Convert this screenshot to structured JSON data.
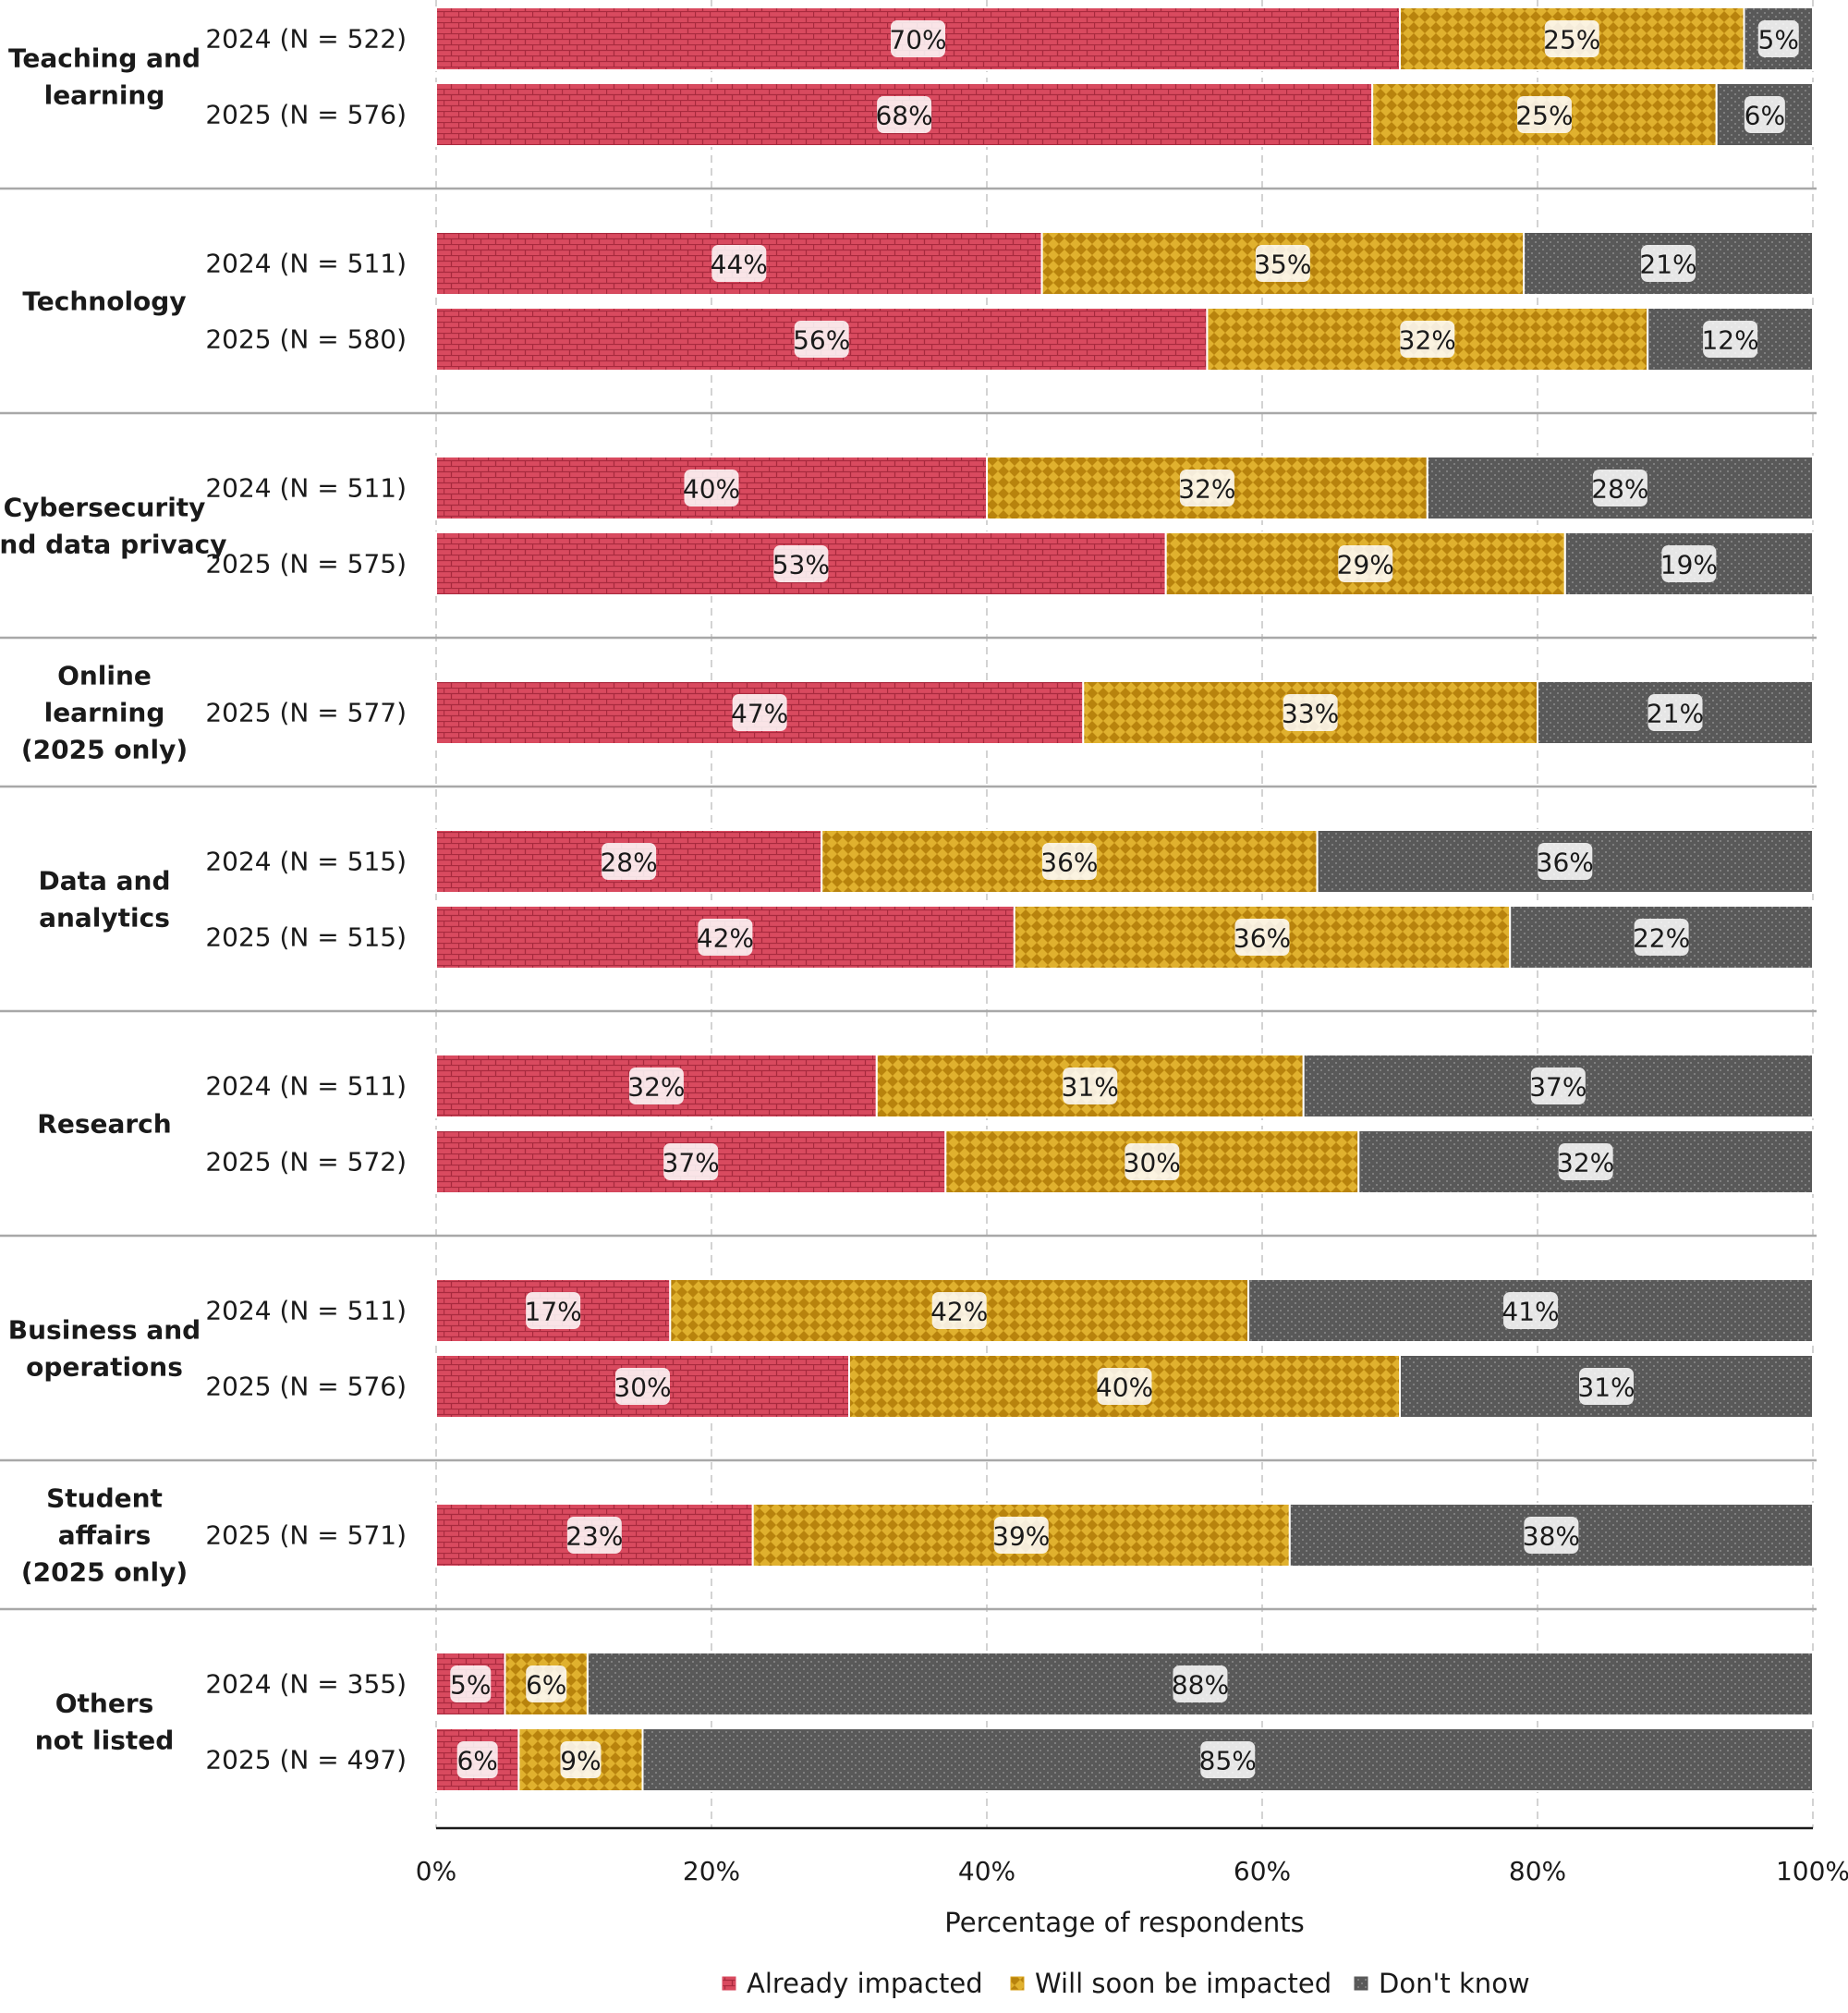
{
  "chart_data": {
    "type": "bar",
    "orientation": "horizontal",
    "stacked": true,
    "xlabel": "Percentage of respondents",
    "xlim": [
      0,
      100
    ],
    "x_ticks": [
      "0%",
      "20%",
      "40%",
      "60%",
      "80%",
      "100%"
    ],
    "grid": "vertical-dashed",
    "legend_position": "bottom",
    "series": [
      {
        "name": "Already impacted",
        "color": "#d94a5f",
        "pattern": "bricks"
      },
      {
        "name": "Will soon be impacted",
        "color": "#d9a21b",
        "pattern": "checker"
      },
      {
        "name": "Don't know",
        "color": "#595959",
        "pattern": "dots"
      }
    ],
    "groups": [
      {
        "label": [
          "Teaching and",
          "learning"
        ],
        "rows": [
          {
            "label": "2024 (N = 522)",
            "values": [
              70,
              25,
              5
            ]
          },
          {
            "label": "2025 (N = 576)",
            "values": [
              68,
              25,
              6
            ]
          }
        ]
      },
      {
        "label": [
          "Technology"
        ],
        "rows": [
          {
            "label": "2024 (N = 511)",
            "values": [
              44,
              35,
              21
            ]
          },
          {
            "label": "2025 (N = 580)",
            "values": [
              56,
              32,
              12
            ]
          }
        ]
      },
      {
        "label": [
          "Cybersecurity",
          "and data privacy"
        ],
        "rows": [
          {
            "label": "2024 (N = 511)",
            "values": [
              40,
              32,
              28
            ]
          },
          {
            "label": "2025 (N = 575)",
            "values": [
              53,
              29,
              19
            ]
          }
        ]
      },
      {
        "label": [
          "Online",
          "learning",
          "(2025 only)"
        ],
        "rows": [
          {
            "label": "2025 (N = 577)",
            "values": [
              47,
              33,
              21
            ]
          }
        ]
      },
      {
        "label": [
          "Data and",
          "analytics"
        ],
        "rows": [
          {
            "label": "2024 (N = 515)",
            "values": [
              28,
              36,
              36
            ]
          },
          {
            "label": "2025 (N = 515)",
            "values": [
              42,
              36,
              22
            ]
          }
        ]
      },
      {
        "label": [
          "Research"
        ],
        "rows": [
          {
            "label": "2024 (N = 511)",
            "values": [
              32,
              31,
              37
            ]
          },
          {
            "label": "2025 (N = 572)",
            "values": [
              37,
              30,
              32
            ]
          }
        ]
      },
      {
        "label": [
          "Business and",
          "operations"
        ],
        "rows": [
          {
            "label": "2024 (N = 511)",
            "values": [
              17,
              42,
              41
            ]
          },
          {
            "label": "2025 (N = 576)",
            "values": [
              30,
              40,
              31
            ]
          }
        ]
      },
      {
        "label": [
          "Student",
          "affairs",
          "(2025 only)"
        ],
        "rows": [
          {
            "label": "2025 (N = 571)",
            "values": [
              23,
              39,
              38
            ]
          }
        ]
      },
      {
        "label": [
          "Others",
          "not listed"
        ],
        "rows": [
          {
            "label": "2024 (N = 355)",
            "values": [
              5,
              6,
              88
            ]
          },
          {
            "label": "2025 (N = 497)",
            "values": [
              6,
              9,
              85
            ]
          }
        ]
      }
    ]
  }
}
